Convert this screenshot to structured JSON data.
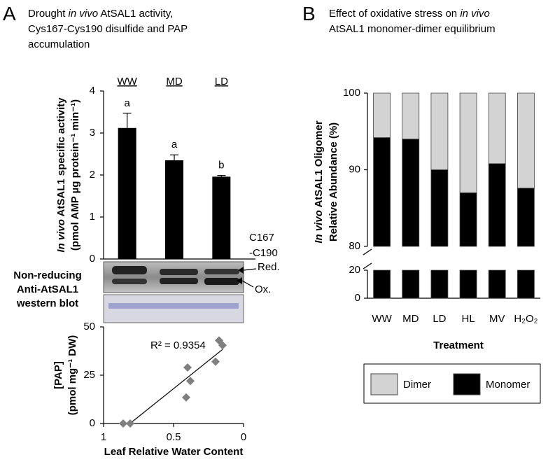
{
  "panel_labels": [
    "A",
    "B"
  ],
  "panel_titles": [
    [
      "Drought in vivo AtSAL1 activity,",
      "Cys167-Cys190 disulfide and PAP",
      "accumulation"
    ],
    [
      "Effect of oxidative stress on in vivo",
      "AtSAL1 monomer-dimer equilibrium"
    ]
  ],
  "blot": {
    "label": [
      "Non-reducing",
      "Anti-AtSAL1",
      "western blot"
    ],
    "site": [
      "C167",
      "-C190"
    ],
    "bands": [
      "Red.",
      "Ox."
    ]
  },
  "chart_data": [
    {
      "type": "bar",
      "categories": [
        "WW",
        "MD",
        "LD"
      ],
      "values": [
        3.12,
        2.35,
        1.96
      ],
      "errors": [
        0.35,
        0.13,
        0.03
      ],
      "annotations": [
        "a",
        "a",
        "b"
      ],
      "color": "#000000",
      "ylim": [
        0,
        4
      ],
      "yticks": [
        0,
        1,
        2,
        3,
        4
      ],
      "ylabel": [
        "In vivo AtSAL1 specific activity",
        "(pmol AMP µg protein⁻¹ min⁻¹)"
      ]
    },
    {
      "type": "scatter",
      "x": [
        0.86,
        0.81,
        0.4,
        0.38,
        0.41,
        0.2,
        0.175,
        0.15
      ],
      "values": [
        0,
        0,
        29,
        22,
        13.5,
        32,
        43,
        40.5
      ],
      "color": "#7f7f7f",
      "trendline": true,
      "annotation": "R² = 0.9354",
      "xlim": [
        1,
        0
      ],
      "xticks": [
        1,
        0.5,
        0
      ],
      "ylim": [
        0,
        50
      ],
      "yticks": [
        0,
        25,
        50
      ],
      "xlabel": "Leaf Relative Water Content",
      "ylabel": [
        "[PAP]",
        "(pmol mg⁻¹ DW)"
      ]
    },
    {
      "type": "stacked_bar",
      "categories": [
        "WW",
        "MD",
        "LD",
        "HL",
        "MV",
        "H₂O₂"
      ],
      "series": [
        {
          "name": "Monomer",
          "color": "#000000",
          "values": [
            94.2,
            94.0,
            90.0,
            87.0,
            90.8,
            87.6
          ]
        },
        {
          "name": "Dimer",
          "color": "#d3d3d3",
          "values": [
            5.8,
            6.0,
            10.0,
            13.0,
            9.2,
            12.4
          ]
        }
      ],
      "ylim": [
        0,
        100
      ],
      "ybreak": [
        20,
        80
      ],
      "yticks": [
        0,
        20,
        80,
        90,
        100
      ],
      "xlabel": "Treatment",
      "ylabel": [
        "In vivo AtSAL1 Oligomer",
        "Relative Abundance (%)"
      ]
    }
  ]
}
